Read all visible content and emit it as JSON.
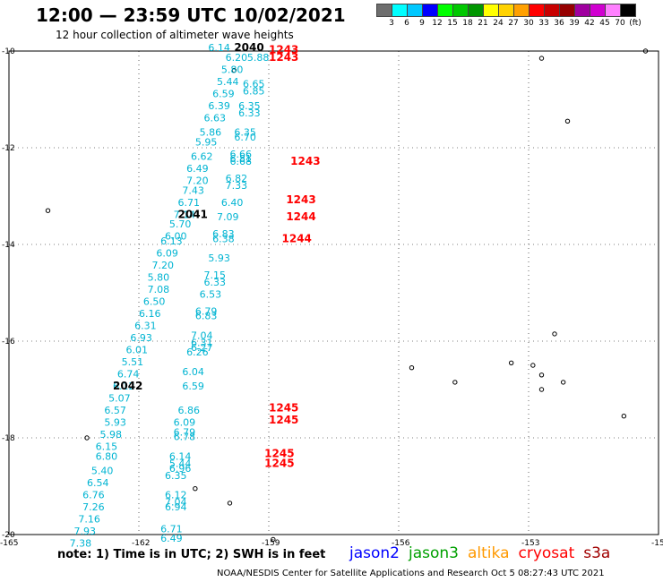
{
  "header": {
    "title": "12:00 — 23:59 UTC 10/02/2021",
    "subtitle": "12 hour collection of altimeter wave heights"
  },
  "colorbar": {
    "colors": [
      "#6e6e6e",
      "#00ffff",
      "#00c8ff",
      "#0000ff",
      "#00ff00",
      "#00c800",
      "#009600",
      "#ffff00",
      "#ffd200",
      "#ffa000",
      "#ff0000",
      "#c80000",
      "#960000",
      "#a000a0",
      "#d000d0",
      "#ff80ff",
      "#000000"
    ],
    "labels": [
      "3",
      "6",
      "9",
      "12",
      "15",
      "18",
      "21",
      "24",
      "27",
      "30",
      "33",
      "36",
      "39",
      "42",
      "45",
      "70",
      "(ft)"
    ]
  },
  "map": {
    "lat_range": [
      -20,
      -10
    ],
    "lon_range": [
      -165,
      -150
    ],
    "lat_ticks": [
      "-10",
      "-12",
      "-14",
      "-16",
      "-18",
      "-20"
    ],
    "lon_ticks": [
      "-162",
      "-159",
      "-156",
      "-153",
      "-15"
    ],
    "corner_label": "-165",
    "grid": "dotted"
  },
  "swh": [
    {
      "lon": -160.4,
      "lat": -10.0,
      "v": "6.14"
    },
    {
      "lon": -160.0,
      "lat": -10.2,
      "v": "6.20"
    },
    {
      "lon": -159.5,
      "lat": -10.2,
      "v": "5.88"
    },
    {
      "lon": -160.1,
      "lat": -10.45,
      "v": "5.80"
    },
    {
      "lon": -160.2,
      "lat": -10.7,
      "v": "5.44"
    },
    {
      "lon": -159.6,
      "lat": -10.75,
      "v": "6.65"
    },
    {
      "lon": -160.3,
      "lat": -10.95,
      "v": "6.59"
    },
    {
      "lon": -159.6,
      "lat": -10.9,
      "v": "6.85"
    },
    {
      "lon": -160.4,
      "lat": -11.2,
      "v": "6.39"
    },
    {
      "lon": -159.7,
      "lat": -11.2,
      "v": "6.35"
    },
    {
      "lon": -160.5,
      "lat": -11.45,
      "v": "6.63"
    },
    {
      "lon": -159.7,
      "lat": -11.35,
      "v": "6.33"
    },
    {
      "lon": -160.6,
      "lat": -11.75,
      "v": "5.86"
    },
    {
      "lon": -159.8,
      "lat": -11.75,
      "v": "6.35"
    },
    {
      "lon": -159.8,
      "lat": -11.85,
      "v": "6.70"
    },
    {
      "lon": -160.7,
      "lat": -11.95,
      "v": "5.95"
    },
    {
      "lon": -160.8,
      "lat": -12.25,
      "v": "6.62"
    },
    {
      "lon": -159.9,
      "lat": -12.2,
      "v": "6.66"
    },
    {
      "lon": -159.9,
      "lat": -12.3,
      "v": "6.81"
    },
    {
      "lon": -159.9,
      "lat": -12.35,
      "v": "6.68"
    },
    {
      "lon": -160.9,
      "lat": -12.5,
      "v": "6.49"
    },
    {
      "lon": -160.9,
      "lat": -12.75,
      "v": "7.20"
    },
    {
      "lon": -160.0,
      "lat": -12.7,
      "v": "6.82"
    },
    {
      "lon": -161.0,
      "lat": -12.95,
      "v": "7.43"
    },
    {
      "lon": -160.0,
      "lat": -12.85,
      "v": "7.33"
    },
    {
      "lon": -161.1,
      "lat": -13.2,
      "v": "6.71"
    },
    {
      "lon": -160.1,
      "lat": -13.2,
      "v": "6.40"
    },
    {
      "lon": -161.2,
      "lat": -13.45,
      "v": "7.14"
    },
    {
      "lon": -160.2,
      "lat": -13.5,
      "v": "7.09"
    },
    {
      "lon": -161.3,
      "lat": -13.65,
      "v": "5.70"
    },
    {
      "lon": -161.4,
      "lat": -13.9,
      "v": "6.00"
    },
    {
      "lon": -160.3,
      "lat": -13.85,
      "v": "6.83"
    },
    {
      "lon": -160.3,
      "lat": -13.95,
      "v": "6.38"
    },
    {
      "lon": -161.5,
      "lat": -14.0,
      "v": "6.13"
    },
    {
      "lon": -161.6,
      "lat": -14.25,
      "v": "6.09"
    },
    {
      "lon": -160.4,
      "lat": -14.35,
      "v": "5.93"
    },
    {
      "lon": -161.7,
      "lat": -14.5,
      "v": "7.20"
    },
    {
      "lon": -161.8,
      "lat": -14.75,
      "v": "5.80"
    },
    {
      "lon": -160.5,
      "lat": -14.7,
      "v": "7.15"
    },
    {
      "lon": -160.5,
      "lat": -14.85,
      "v": "6.33"
    },
    {
      "lon": -161.8,
      "lat": -15.0,
      "v": "7.08"
    },
    {
      "lon": -160.6,
      "lat": -15.1,
      "v": "6.53"
    },
    {
      "lon": -161.9,
      "lat": -15.25,
      "v": "6.50"
    },
    {
      "lon": -162.0,
      "lat": -15.5,
      "v": "6.16"
    },
    {
      "lon": -160.7,
      "lat": -15.45,
      "v": "6.79"
    },
    {
      "lon": -160.7,
      "lat": -15.55,
      "v": "6.83"
    },
    {
      "lon": -162.1,
      "lat": -15.75,
      "v": "6.31"
    },
    {
      "lon": -162.2,
      "lat": -16.0,
      "v": "6.93"
    },
    {
      "lon": -160.8,
      "lat": -15.95,
      "v": "7.04"
    },
    {
      "lon": -160.8,
      "lat": -16.1,
      "v": "6.31"
    },
    {
      "lon": -160.8,
      "lat": -16.2,
      "v": "6.27"
    },
    {
      "lon": -162.3,
      "lat": -16.25,
      "v": "6.01"
    },
    {
      "lon": -160.9,
      "lat": -16.3,
      "v": "6.26"
    },
    {
      "lon": -162.4,
      "lat": -16.5,
      "v": "5.51"
    },
    {
      "lon": -162.5,
      "lat": -16.75,
      "v": "6.74"
    },
    {
      "lon": -161.0,
      "lat": -16.7,
      "v": "6.04"
    },
    {
      "lon": -162.6,
      "lat": -17.0,
      "v": "6.12"
    },
    {
      "lon": -161.0,
      "lat": -17.0,
      "v": "6.59"
    },
    {
      "lon": -162.7,
      "lat": -17.25,
      "v": "5.07"
    },
    {
      "lon": -162.8,
      "lat": -17.5,
      "v": "6.57"
    },
    {
      "lon": -161.1,
      "lat": -17.5,
      "v": "6.86"
    },
    {
      "lon": -162.8,
      "lat": -17.75,
      "v": "5.93"
    },
    {
      "lon": -161.2,
      "lat": -17.75,
      "v": "6.09"
    },
    {
      "lon": -162.9,
      "lat": -18.0,
      "v": "5.98"
    },
    {
      "lon": -161.2,
      "lat": -17.95,
      "v": "6.79"
    },
    {
      "lon": -161.2,
      "lat": -18.05,
      "v": "6.78"
    },
    {
      "lon": -163.0,
      "lat": -18.25,
      "v": "6.15"
    },
    {
      "lon": -163.0,
      "lat": -18.45,
      "v": "6.80"
    },
    {
      "lon": -161.3,
      "lat": -18.45,
      "v": "6.14"
    },
    {
      "lon": -161.3,
      "lat": -18.6,
      "v": "5.44"
    },
    {
      "lon": -161.3,
      "lat": -18.7,
      "v": "6.96"
    },
    {
      "lon": -163.1,
      "lat": -18.75,
      "v": "5.40"
    },
    {
      "lon": -161.4,
      "lat": -18.85,
      "v": "6.35"
    },
    {
      "lon": -163.2,
      "lat": -19.0,
      "v": "6.54"
    },
    {
      "lon": -163.3,
      "lat": -19.25,
      "v": "6.76"
    },
    {
      "lon": -161.4,
      "lat": -19.25,
      "v": "6.12"
    },
    {
      "lon": -161.4,
      "lat": -19.4,
      "v": "7.04"
    },
    {
      "lon": -161.4,
      "lat": -19.5,
      "v": "6.94"
    },
    {
      "lon": -163.3,
      "lat": -19.5,
      "v": "7.26"
    },
    {
      "lon": -163.4,
      "lat": -19.75,
      "v": "7.16"
    },
    {
      "lon": -163.5,
      "lat": -20.0,
      "v": "7.93"
    },
    {
      "lon": -161.5,
      "lat": -19.95,
      "v": "6.71"
    },
    {
      "lon": -161.5,
      "lat": -20.15,
      "v": "6.49"
    },
    {
      "lon": -163.6,
      "lat": -20.25,
      "v": "7.38"
    }
  ],
  "times": [
    {
      "lon": -159.8,
      "lat": -10.0,
      "v": "2040",
      "color": "#000000"
    },
    {
      "lon": -161.1,
      "lat": -13.45,
      "v": "2041",
      "color": "#000000"
    },
    {
      "lon": -162.6,
      "lat": -17.0,
      "v": "2042",
      "color": "#000000"
    },
    {
      "lon": -159.0,
      "lat": -10.05,
      "v": "1243",
      "color": "#ff0000"
    },
    {
      "lon": -159.0,
      "lat": -10.2,
      "v": "1243",
      "color": "#ff0000"
    },
    {
      "lon": -158.5,
      "lat": -12.35,
      "v": "1243",
      "color": "#ff0000"
    },
    {
      "lon": -158.6,
      "lat": -13.15,
      "v": "1243",
      "color": "#ff0000"
    },
    {
      "lon": -158.6,
      "lat": -13.5,
      "v": "1244",
      "color": "#ff0000"
    },
    {
      "lon": -158.7,
      "lat": -13.95,
      "v": "1244",
      "color": "#ff0000"
    },
    {
      "lon": -159.0,
      "lat": -17.45,
      "v": "1245",
      "color": "#ff0000"
    },
    {
      "lon": -159.0,
      "lat": -17.7,
      "v": "1245",
      "color": "#ff0000"
    },
    {
      "lon": -159.1,
      "lat": -18.4,
      "v": "1245",
      "color": "#ff0000"
    },
    {
      "lon": -159.1,
      "lat": -18.6,
      "v": "1245",
      "color": "#ff0000"
    }
  ],
  "footer": {
    "note": "note:  1) Time is in UTC;  2) SWH is in feet",
    "legend": [
      {
        "name": "jason2",
        "color": "#0000ff"
      },
      {
        "name": "jason3",
        "color": "#00a000"
      },
      {
        "name": "altika",
        "color": "#ff9900"
      },
      {
        "name": "cryosat",
        "color": "#ff0000"
      },
      {
        "name": "s3a",
        "color": "#a00000"
      }
    ],
    "credit": "NOAA/NESDIS Center for Satellite Applications and Research     Oct  5 08:27:43 UTC 2021"
  }
}
